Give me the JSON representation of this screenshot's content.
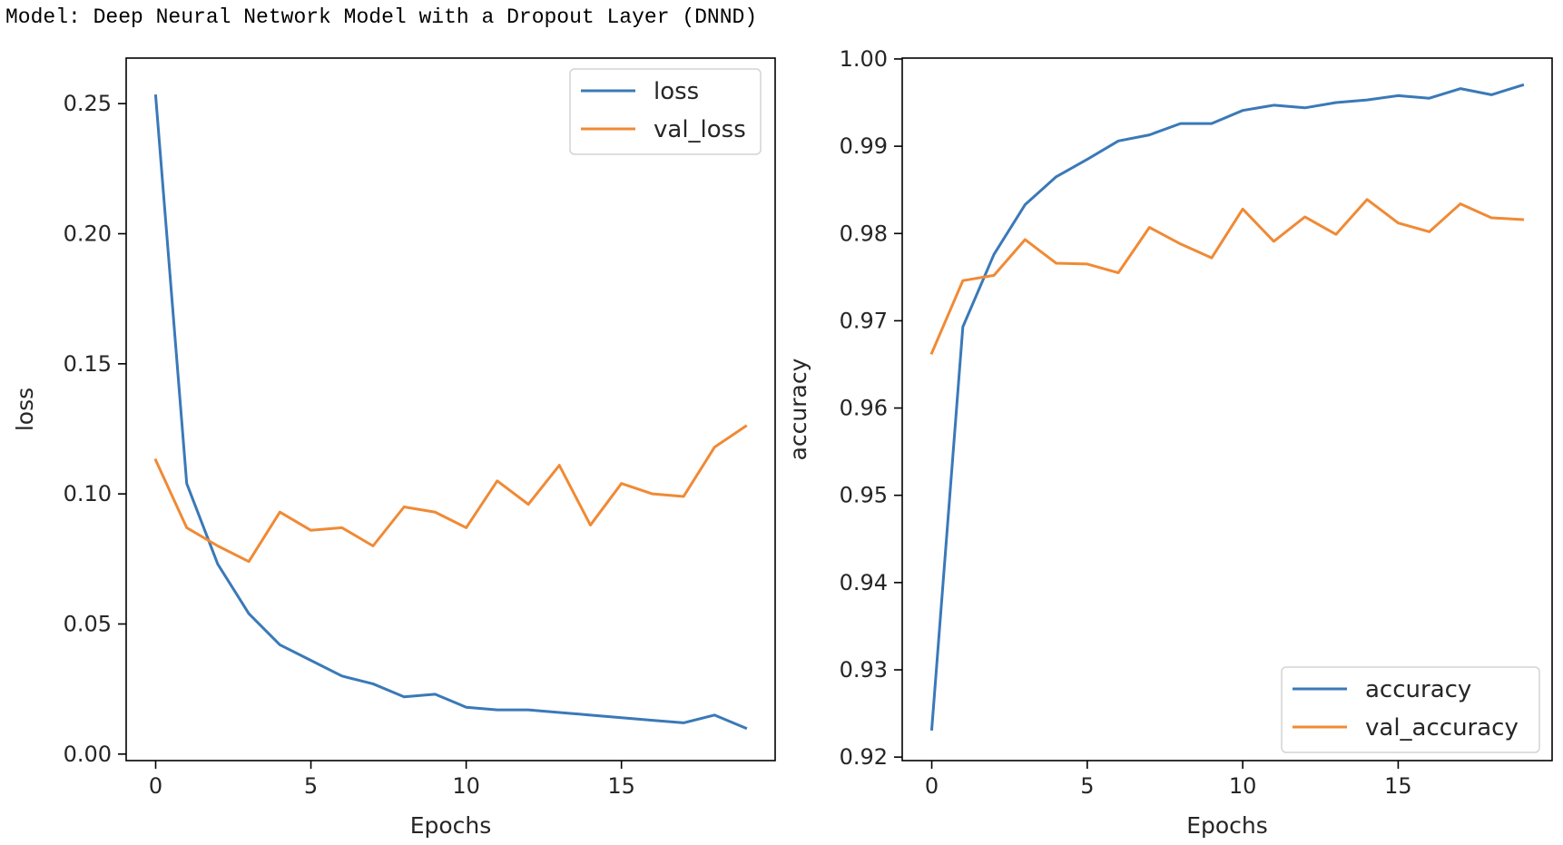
{
  "page": {
    "title": "Model: Deep Neural Network Model with a Dropout Layer (DNND)"
  },
  "colors": {
    "series1": "#3a79b8",
    "series2": "#f08a35",
    "axis": "#000000",
    "legend_border": "#d4d4d4"
  },
  "chart_data": [
    {
      "type": "line",
      "xlabel": "Epochs",
      "ylabel": "loss",
      "xlim": [
        -0.95,
        19.95
      ],
      "ylim": [
        -0.0025,
        0.2675
      ],
      "xticks": [
        0,
        5,
        10,
        15
      ],
      "xtick_labels": [
        "0",
        "5",
        "10",
        "15"
      ],
      "yticks": [
        0.0,
        0.05,
        0.1,
        0.15,
        0.2,
        0.25
      ],
      "ytick_labels": [
        "0.00",
        "0.05",
        "0.10",
        "0.15",
        "0.20",
        "0.25"
      ],
      "legend_position": "top-right",
      "grid": false,
      "x": [
        0,
        1,
        2,
        3,
        4,
        5,
        6,
        7,
        8,
        9,
        10,
        11,
        12,
        13,
        14,
        15,
        16,
        17,
        18,
        19
      ],
      "series": [
        {
          "name": "loss",
          "values": [
            0.253,
            0.104,
            0.073,
            0.054,
            0.042,
            0.036,
            0.03,
            0.027,
            0.022,
            0.023,
            0.018,
            0.017,
            0.017,
            0.016,
            0.015,
            0.014,
            0.013,
            0.012,
            0.015,
            0.01
          ]
        },
        {
          "name": "val_loss",
          "values": [
            0.113,
            0.087,
            0.08,
            0.074,
            0.093,
            0.086,
            0.087,
            0.08,
            0.095,
            0.093,
            0.087,
            0.105,
            0.096,
            0.111,
            0.088,
            0.104,
            0.1,
            0.099,
            0.118,
            0.126
          ]
        }
      ]
    },
    {
      "type": "line",
      "xlabel": "Epochs",
      "ylabel": "accuracy",
      "xlim": [
        -0.95,
        19.95
      ],
      "ylim": [
        0.9196,
        1.0001
      ],
      "xticks": [
        0,
        5,
        10,
        15
      ],
      "xtick_labels": [
        "0",
        "5",
        "10",
        "15"
      ],
      "yticks": [
        0.92,
        0.93,
        0.94,
        0.95,
        0.96,
        0.97,
        0.98,
        0.99,
        1.0
      ],
      "ytick_labels": [
        "0.92",
        "0.93",
        "0.94",
        "0.95",
        "0.96",
        "0.97",
        "0.98",
        "0.99",
        "1.00"
      ],
      "legend_position": "bottom-right",
      "grid": false,
      "x": [
        0,
        1,
        2,
        3,
        4,
        5,
        6,
        7,
        8,
        9,
        10,
        11,
        12,
        13,
        14,
        15,
        16,
        17,
        18,
        19
      ],
      "series": [
        {
          "name": "accuracy",
          "values": [
            0.9232,
            0.9693,
            0.9776,
            0.9833,
            0.9865,
            0.9885,
            0.9906,
            0.9913,
            0.9926,
            0.9926,
            0.9941,
            0.9947,
            0.9944,
            0.995,
            0.9953,
            0.9958,
            0.9955,
            0.9966,
            0.9959,
            0.997
          ]
        },
        {
          "name": "val_accuracy",
          "values": [
            0.9663,
            0.9746,
            0.9752,
            0.9793,
            0.9766,
            0.9765,
            0.9755,
            0.9807,
            0.9788,
            0.9772,
            0.9828,
            0.9791,
            0.9819,
            0.9799,
            0.9839,
            0.9812,
            0.9802,
            0.9834,
            0.9818,
            0.9816
          ]
        }
      ]
    }
  ]
}
